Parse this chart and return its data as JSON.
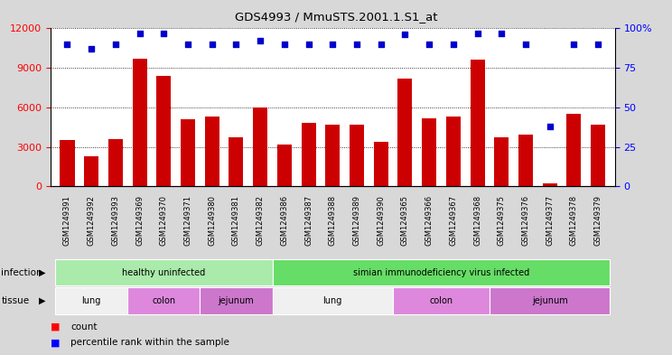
{
  "title": "GDS4993 / MmuSTS.2001.1.S1_at",
  "samples": [
    "GSM1249391",
    "GSM1249392",
    "GSM1249393",
    "GSM1249369",
    "GSM1249370",
    "GSM1249371",
    "GSM1249380",
    "GSM1249381",
    "GSM1249382",
    "GSM1249386",
    "GSM1249387",
    "GSM1249388",
    "GSM1249389",
    "GSM1249390",
    "GSM1249365",
    "GSM1249366",
    "GSM1249367",
    "GSM1249368",
    "GSM1249375",
    "GSM1249376",
    "GSM1249377",
    "GSM1249378",
    "GSM1249379"
  ],
  "counts": [
    3500,
    2300,
    3600,
    9700,
    8400,
    5100,
    5300,
    3700,
    6000,
    3200,
    4800,
    4700,
    4700,
    3400,
    8200,
    5200,
    5300,
    9600,
    3700,
    3900,
    200,
    5500,
    4700
  ],
  "percentiles": [
    90,
    87,
    90,
    97,
    97,
    90,
    90,
    90,
    92,
    90,
    90,
    90,
    90,
    90,
    96,
    90,
    90,
    97,
    97,
    90,
    38,
    90,
    90
  ],
  "bar_color": "#cc0000",
  "dot_color": "#0000cc",
  "ylim_left": [
    0,
    12000
  ],
  "ylim_right": [
    0,
    100
  ],
  "yticks_left": [
    0,
    3000,
    6000,
    9000,
    12000
  ],
  "yticks_right": [
    0,
    25,
    50,
    75,
    100
  ],
  "infection_groups": [
    {
      "label": "healthy uninfected",
      "start": 0,
      "end": 9,
      "color": "#aaeaaa"
    },
    {
      "label": "simian immunodeficiency virus infected",
      "start": 9,
      "end": 23,
      "color": "#66dd66"
    }
  ],
  "tissue_groups": [
    {
      "label": "lung",
      "start": 0,
      "end": 3,
      "color": "#f0f0f0"
    },
    {
      "label": "colon",
      "start": 3,
      "end": 6,
      "color": "#dd88dd"
    },
    {
      "label": "jejunum",
      "start": 6,
      "end": 9,
      "color": "#cc77cc"
    },
    {
      "label": "lung",
      "start": 9,
      "end": 14,
      "color": "#f0f0f0"
    },
    {
      "label": "colon",
      "start": 14,
      "end": 18,
      "color": "#dd88dd"
    },
    {
      "label": "jejunum",
      "start": 18,
      "end": 23,
      "color": "#cc77cc"
    }
  ],
  "bg_color": "#d8d8d8",
  "plot_bg_color": "#ffffff"
}
